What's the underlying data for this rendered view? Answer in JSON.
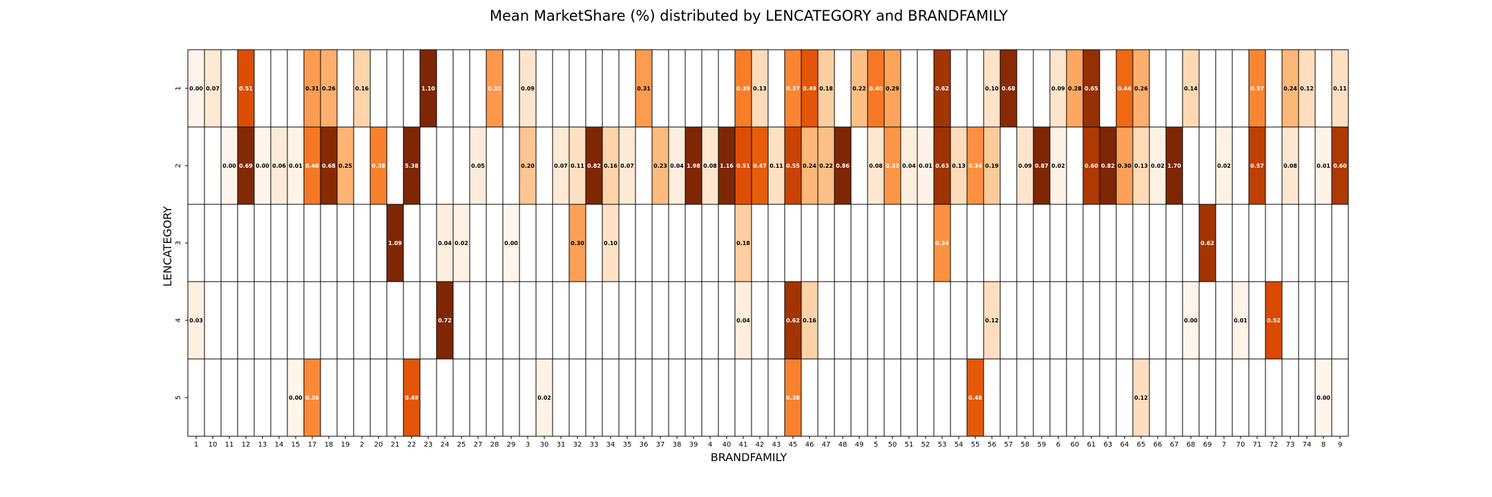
{
  "chart_data": {
    "type": "heatmap",
    "title": "Mean MarketShare (%) distributed by LENCATEGORY and BRANDFAMILY",
    "xlabel": "BRANDFAMILY",
    "ylabel": "LENCATEGORY",
    "x_categories": [
      "1",
      "10",
      "11",
      "12",
      "13",
      "14",
      "15",
      "17",
      "18",
      "19",
      "2",
      "20",
      "21",
      "22",
      "23",
      "24",
      "25",
      "27",
      "28",
      "29",
      "3",
      "30",
      "31",
      "32",
      "33",
      "34",
      "35",
      "36",
      "37",
      "38",
      "39",
      "4",
      "40",
      "41",
      "42",
      "43",
      "45",
      "46",
      "47",
      "48",
      "49",
      "5",
      "50",
      "51",
      "52",
      "53",
      "54",
      "55",
      "56",
      "57",
      "58",
      "59",
      "6",
      "60",
      "61",
      "63",
      "64",
      "65",
      "66",
      "67",
      "68",
      "69",
      "7",
      "70",
      "71",
      "72",
      "73",
      "74",
      "8",
      "9"
    ],
    "y_categories": [
      "1",
      "2",
      "3",
      "4",
      "5"
    ],
    "colormap": "Oranges",
    "color_range": [
      0,
      0.7
    ],
    "cells": [
      {
        "row": "1",
        "col": "1",
        "value": "0.00"
      },
      {
        "row": "1",
        "col": "10",
        "value": "0.07"
      },
      {
        "row": "1",
        "col": "12",
        "value": "0.51"
      },
      {
        "row": "1",
        "col": "17",
        "value": "0.31"
      },
      {
        "row": "1",
        "col": "18",
        "value": "0.26"
      },
      {
        "row": "1",
        "col": "2",
        "value": "0.16"
      },
      {
        "row": "1",
        "col": "23",
        "value": "1.10"
      },
      {
        "row": "1",
        "col": "28",
        "value": "0.32"
      },
      {
        "row": "1",
        "col": "3",
        "value": "0.09"
      },
      {
        "row": "1",
        "col": "36",
        "value": "0.31"
      },
      {
        "row": "1",
        "col": "41",
        "value": "0.39"
      },
      {
        "row": "1",
        "col": "42",
        "value": "0.13"
      },
      {
        "row": "1",
        "col": "45",
        "value": "0.37"
      },
      {
        "row": "1",
        "col": "46",
        "value": "0.49"
      },
      {
        "row": "1",
        "col": "47",
        "value": "0.18"
      },
      {
        "row": "1",
        "col": "49",
        "value": "0.22"
      },
      {
        "row": "1",
        "col": "5",
        "value": "0.40"
      },
      {
        "row": "1",
        "col": "50",
        "value": "0.29"
      },
      {
        "row": "1",
        "col": "53",
        "value": "0.62"
      },
      {
        "row": "1",
        "col": "56",
        "value": "0.10"
      },
      {
        "row": "1",
        "col": "57",
        "value": "0.68"
      },
      {
        "row": "1",
        "col": "6",
        "value": "0.09"
      },
      {
        "row": "1",
        "col": "60",
        "value": "0.28"
      },
      {
        "row": "1",
        "col": "61",
        "value": "0.65"
      },
      {
        "row": "1",
        "col": "64",
        "value": "0.44"
      },
      {
        "row": "1",
        "col": "65",
        "value": "0.26"
      },
      {
        "row": "1",
        "col": "68",
        "value": "0.14"
      },
      {
        "row": "1",
        "col": "71",
        "value": "0.37"
      },
      {
        "row": "1",
        "col": "73",
        "value": "0.24"
      },
      {
        "row": "1",
        "col": "74",
        "value": "0.12"
      },
      {
        "row": "1",
        "col": "9",
        "value": "0.11"
      },
      {
        "row": "2",
        "col": "11",
        "value": "0.00"
      },
      {
        "row": "2",
        "col": "12",
        "value": "0.69"
      },
      {
        "row": "2",
        "col": "13",
        "value": "0.00"
      },
      {
        "row": "2",
        "col": "14",
        "value": "0.06"
      },
      {
        "row": "2",
        "col": "15",
        "value": "0.01"
      },
      {
        "row": "2",
        "col": "17",
        "value": "0.40"
      },
      {
        "row": "2",
        "col": "18",
        "value": "0.68"
      },
      {
        "row": "2",
        "col": "19",
        "value": "0.25"
      },
      {
        "row": "2",
        "col": "20",
        "value": "0.38"
      },
      {
        "row": "2",
        "col": "22",
        "value": "5.38"
      },
      {
        "row": "2",
        "col": "27",
        "value": "0.05"
      },
      {
        "row": "2",
        "col": "3",
        "value": "0.20"
      },
      {
        "row": "2",
        "col": "31",
        "value": "0.07"
      },
      {
        "row": "2",
        "col": "32",
        "value": "0.11"
      },
      {
        "row": "2",
        "col": "33",
        "value": "0.82"
      },
      {
        "row": "2",
        "col": "34",
        "value": "0.16"
      },
      {
        "row": "2",
        "col": "35",
        "value": "0.07"
      },
      {
        "row": "2",
        "col": "37",
        "value": "0.23"
      },
      {
        "row": "2",
        "col": "38",
        "value": "0.04"
      },
      {
        "row": "2",
        "col": "39",
        "value": "1.98"
      },
      {
        "row": "2",
        "col": "4",
        "value": "0.08"
      },
      {
        "row": "2",
        "col": "40",
        "value": "1.16"
      },
      {
        "row": "2",
        "col": "41",
        "value": "0.51"
      },
      {
        "row": "2",
        "col": "42",
        "value": "0.47"
      },
      {
        "row": "2",
        "col": "43",
        "value": "0.11"
      },
      {
        "row": "2",
        "col": "45",
        "value": "0.55"
      },
      {
        "row": "2",
        "col": "46",
        "value": "0.24"
      },
      {
        "row": "2",
        "col": "47",
        "value": "0.22"
      },
      {
        "row": "2",
        "col": "48",
        "value": "0.86"
      },
      {
        "row": "2",
        "col": "5",
        "value": "0.08"
      },
      {
        "row": "2",
        "col": "50",
        "value": "0.33"
      },
      {
        "row": "2",
        "col": "51",
        "value": "0.04"
      },
      {
        "row": "2",
        "col": "52",
        "value": "0.01"
      },
      {
        "row": "2",
        "col": "53",
        "value": "0.63"
      },
      {
        "row": "2",
        "col": "54",
        "value": "0.13"
      },
      {
        "row": "2",
        "col": "55",
        "value": "0.34"
      },
      {
        "row": "2",
        "col": "56",
        "value": "0.19"
      },
      {
        "row": "2",
        "col": "58",
        "value": "0.09"
      },
      {
        "row": "2",
        "col": "59",
        "value": "0.87"
      },
      {
        "row": "2",
        "col": "6",
        "value": "0.02"
      },
      {
        "row": "2",
        "col": "61",
        "value": "0.60"
      },
      {
        "row": "2",
        "col": "63",
        "value": "0.82"
      },
      {
        "row": "2",
        "col": "64",
        "value": "0.30"
      },
      {
        "row": "2",
        "col": "65",
        "value": "0.13"
      },
      {
        "row": "2",
        "col": "66",
        "value": "0.02"
      },
      {
        "row": "2",
        "col": "67",
        "value": "1.70"
      },
      {
        "row": "2",
        "col": "7",
        "value": "0.02"
      },
      {
        "row": "2",
        "col": "71",
        "value": "0.57"
      },
      {
        "row": "2",
        "col": "73",
        "value": "0.08"
      },
      {
        "row": "2",
        "col": "8",
        "value": "0.01"
      },
      {
        "row": "2",
        "col": "9",
        "value": "0.60"
      },
      {
        "row": "3",
        "col": "21",
        "value": "1.09"
      },
      {
        "row": "3",
        "col": "24",
        "value": "0.04"
      },
      {
        "row": "3",
        "col": "25",
        "value": "0.02"
      },
      {
        "row": "3",
        "col": "29",
        "value": "0.00"
      },
      {
        "row": "3",
        "col": "32",
        "value": "0.30"
      },
      {
        "row": "3",
        "col": "34",
        "value": "0.10"
      },
      {
        "row": "3",
        "col": "41",
        "value": "0.18"
      },
      {
        "row": "3",
        "col": "53",
        "value": "0.34"
      },
      {
        "row": "3",
        "col": "69",
        "value": "0.62"
      },
      {
        "row": "4",
        "col": "1",
        "value": "0.03"
      },
      {
        "row": "4",
        "col": "24",
        "value": "0.72"
      },
      {
        "row": "4",
        "col": "41",
        "value": "0.04"
      },
      {
        "row": "4",
        "col": "45",
        "value": "0.62"
      },
      {
        "row": "4",
        "col": "46",
        "value": "0.16"
      },
      {
        "row": "4",
        "col": "56",
        "value": "0.12"
      },
      {
        "row": "4",
        "col": "68",
        "value": "0.00"
      },
      {
        "row": "4",
        "col": "70",
        "value": "0.01"
      },
      {
        "row": "4",
        "col": "72",
        "value": "0.52"
      },
      {
        "row": "5",
        "col": "15",
        "value": "0.00"
      },
      {
        "row": "5",
        "col": "17",
        "value": "0.36"
      },
      {
        "row": "5",
        "col": "22",
        "value": "0.49"
      },
      {
        "row": "5",
        "col": "30",
        "value": "0.02"
      },
      {
        "row": "5",
        "col": "45",
        "value": "0.38"
      },
      {
        "row": "5",
        "col": "55",
        "value": "0.48"
      },
      {
        "row": "5",
        "col": "65",
        "value": "0.12"
      },
      {
        "row": "5",
        "col": "8",
        "value": "0.00"
      }
    ]
  }
}
